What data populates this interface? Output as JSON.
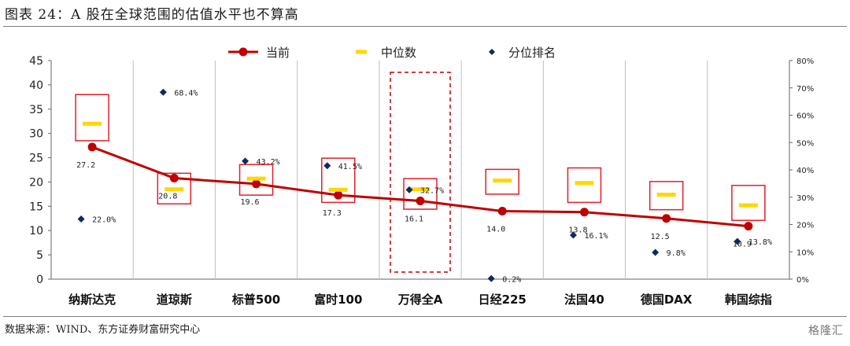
{
  "figure": {
    "title": "图表 24：A 股在全球范围的估值水平也不算高",
    "source": "数据来源：WIND、东方证券财富研究中心",
    "watermark": "格隆汇"
  },
  "chart_data": {
    "type": "line",
    "categories": [
      "纳斯达克",
      "道琼斯",
      "标普500",
      "富时100",
      "万得全A",
      "日经225",
      "法国40",
      "德国DAX",
      "韩国综指"
    ],
    "series": [
      {
        "name": "当前",
        "type": "line",
        "axis": "left",
        "color": "#c00000",
        "values": [
          27.2,
          20.8,
          19.6,
          17.3,
          16.1,
          14.0,
          13.8,
          12.5,
          10.9
        ],
        "labels": [
          "27.2",
          "20.8",
          "19.6",
          "17.3",
          "16.1",
          "14.0",
          "13.8",
          "12.5",
          "10.9"
        ]
      },
      {
        "name": "中位数",
        "type": "marker-dash",
        "axis": "left",
        "color": "#ffd700",
        "values": [
          32.0,
          18.5,
          20.7,
          18.4,
          18.5,
          20.3,
          19.8,
          17.4,
          15.2
        ]
      },
      {
        "name": "分位排名",
        "type": "scatter",
        "axis": "right",
        "color": "#0f2a5f",
        "values": [
          22.0,
          68.4,
          43.2,
          41.5,
          32.7,
          0.2,
          16.1,
          9.8,
          13.8
        ],
        "labels": [
          "22.0%",
          "68.4%",
          "43.2%",
          "41.5%",
          "32.7%",
          "0.2%",
          "16.1%",
          "9.8%",
          "13.8%"
        ]
      }
    ],
    "ranges": [
      {
        "low": 28.5,
        "high": 38.0
      },
      {
        "low": 15.5,
        "high": 21.8
      },
      {
        "low": 17.3,
        "high": 23.6
      },
      {
        "low": 15.8,
        "high": 24.9
      },
      {
        "low": 14.4,
        "high": 20.7
      },
      {
        "low": 17.5,
        "high": 22.6
      },
      {
        "low": 15.8,
        "high": 22.9
      },
      {
        "low": 14.3,
        "high": 20.1
      },
      {
        "low": 12.1,
        "high": 19.3
      }
    ],
    "highlight_category": "万得全A",
    "y_left": {
      "min": 0,
      "max": 45,
      "ticks": [
        "0",
        "5",
        "10",
        "15",
        "20",
        "25",
        "30",
        "35",
        "40",
        "45"
      ]
    },
    "y_right": {
      "min": 0,
      "max": 80,
      "ticks": [
        "0%",
        "10%",
        "20%",
        "30%",
        "40%",
        "50%",
        "60%",
        "70%",
        "80%"
      ]
    },
    "legend_position": "top-center",
    "grid": false
  }
}
